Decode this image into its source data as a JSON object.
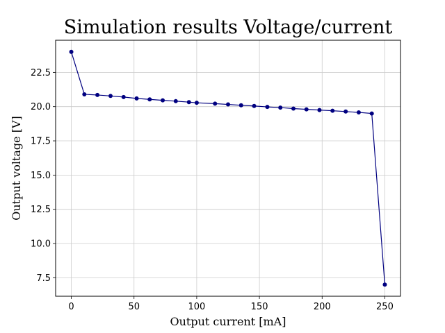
{
  "chart_data": {
    "type": "line",
    "title": "Simulation results Voltage/current",
    "xlabel": "Output current [mA]",
    "ylabel": "Output voltage [V]",
    "xlim": [
      -12.5,
      262.5
    ],
    "ylim": [
      6.15,
      24.85
    ],
    "xticks": [
      "0",
      "50",
      "100",
      "150",
      "200",
      "250"
    ],
    "yticks": [
      "7.5",
      "10.0",
      "12.5",
      "15.0",
      "17.5",
      "20.0",
      "22.5"
    ],
    "grid": true,
    "legend": "none",
    "colors": {
      "line": "#000080",
      "marker": "#000080",
      "grid": "#cccccc"
    },
    "series": [
      {
        "x": [
          0,
          10.4,
          20.8,
          31.3,
          41.7,
          52.1,
          62.5,
          72.9,
          83.3,
          93.8,
          100,
          114.6,
          125,
          135.4,
          145.8,
          156.3,
          166.7,
          177.1,
          187.5,
          197.9,
          208.3,
          218.8,
          229.2,
          239.6,
          250
        ],
        "y": [
          24.0,
          20.9,
          20.85,
          20.78,
          20.7,
          20.6,
          20.53,
          20.46,
          20.4,
          20.33,
          20.28,
          20.22,
          20.16,
          20.1,
          20.05,
          19.98,
          19.93,
          19.86,
          19.8,
          19.75,
          19.7,
          19.64,
          19.58,
          19.5,
          7.0
        ]
      }
    ]
  }
}
